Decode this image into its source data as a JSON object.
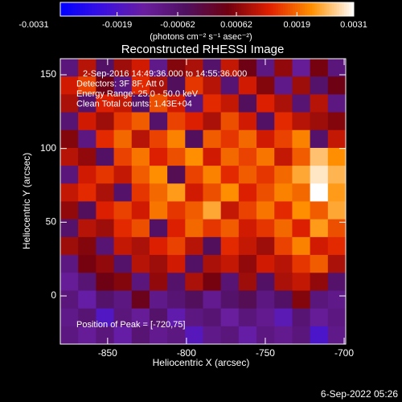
{
  "chart_data": {
    "type": "heatmap",
    "title": "Reconstructed RHESSI Image",
    "annotations": [
      "2-Sep-2016 14:49:36.000 to 14:55:36.000",
      "Detectors: 3F 8F, Att 0",
      "Energy Range: 25.0 - 50.0 keV",
      "Clean     Total counts: 1.43E+04"
    ],
    "peak_label": "Position of Peak = [-720,75]",
    "xlabel": "Heliocentric X (arcsec)",
    "ylabel": "Heliocentric Y (arcsec)",
    "colorbar_label": "(photons cm⁻² s⁻¹ asec⁻²)",
    "timestamp": "6-Sep-2022 05:26",
    "xlim": [
      -880,
      -699
    ],
    "xticks": [
      -850,
      -800,
      -750,
      -700
    ],
    "ylim": [
      -32.7,
      160.9
    ],
    "yticks": [
      0,
      50,
      100,
      150
    ],
    "colorbar_lim": [
      -0.0031,
      0.0031
    ],
    "colorbar_ticks": [
      -0.0031,
      -0.0019,
      -0.00062,
      0.00062,
      0.0019,
      0.0031
    ],
    "colorscale": [
      "#0000ff",
      "#3a10e0",
      "#6a1ea0",
      "#501060",
      "#700010",
      "#e02000",
      "#ff9000",
      "#ffffff"
    ],
    "z": [
      [
        -0.0008,
        0.001,
        -0.0005,
        0.0008,
        0.0012,
        -0.001,
        0.0006,
        0.0009,
        -0.0006,
        0.0011,
        0.0004,
        -0.0009,
        0.0007,
        -0.0012,
        0.0005,
        -0.0008
      ],
      [
        0.0012,
        0.0016,
        0.0004,
        -0.0008,
        0.0014,
        0.0009,
        -0.0004,
        0.0015,
        0.001,
        -0.0007,
        0.0012,
        0.0006,
        -0.001,
        0.0008,
        -0.0006,
        0.0004
      ],
      [
        0.0009,
        -0.0006,
        0.0013,
        0.0011,
        -0.0005,
        0.0017,
        0.0012,
        -0.0008,
        0.0014,
        0.0011,
        -0.0004,
        0.0013,
        0.0009,
        -0.0007,
        0.001,
        -0.0009
      ],
      [
        -0.0007,
        0.0012,
        0.0008,
        0.0015,
        0.0018,
        -0.0006,
        0.0016,
        0.0013,
        0.0009,
        0.0017,
        0.0012,
        -0.0005,
        0.0014,
        0.001,
        0.0008,
        0.0006
      ],
      [
        0.0006,
        -0.0009,
        0.0014,
        0.0019,
        0.001,
        0.0016,
        0.0021,
        -0.0004,
        0.0018,
        0.0015,
        0.0019,
        0.0012,
        0.0016,
        0.0021,
        -0.0006,
        0.0011
      ],
      [
        0.001,
        0.0007,
        -0.0005,
        0.0016,
        0.002,
        0.0013,
        0.0017,
        0.0022,
        0.0012,
        0.0019,
        0.0016,
        0.002,
        0.0011,
        0.0018,
        0.0026,
        0.0022
      ],
      [
        -0.0008,
        0.0012,
        0.0015,
        0.0011,
        0.0018,
        0.0022,
        -0.0003,
        0.0016,
        0.0021,
        0.0014,
        0.0018,
        0.0015,
        0.0019,
        0.0024,
        0.0029,
        0.0025
      ],
      [
        0.0011,
        0.0014,
        0.0009,
        -0.0006,
        0.0015,
        0.0019,
        0.0023,
        0.0012,
        0.0017,
        0.0022,
        0.0013,
        0.0017,
        0.0021,
        0.0019,
        0.0031,
        0.0023
      ],
      [
        0.0007,
        -0.0004,
        0.0013,
        0.0016,
        0.0012,
        0.002,
        0.0015,
        0.0018,
        0.0024,
        0.0011,
        0.0016,
        0.002,
        0.0014,
        0.0022,
        0.0018,
        0.0024
      ],
      [
        -0.0006,
        0.001,
        0.0008,
        0.0014,
        0.0017,
        -0.0005,
        0.0013,
        0.0019,
        0.0015,
        0.0018,
        0.0012,
        0.0015,
        0.0019,
        0.0013,
        0.0023,
        0.0017
      ],
      [
        0.0008,
        0.0006,
        -0.0007,
        0.0011,
        0.0009,
        0.0013,
        0.0016,
        0.001,
        -0.0004,
        0.0014,
        0.0011,
        0.0008,
        0.0016,
        0.0021,
        0.0012,
        0.0014
      ],
      [
        -0.0009,
        0.0005,
        0.0007,
        -0.0006,
        0.001,
        0.0008,
        0.0012,
        -0.0005,
        0.0009,
        0.0011,
        0.0007,
        0.0012,
        0.001,
        0.0015,
        0.0018,
        0.0009
      ],
      [
        -0.0012,
        -0.0007,
        0.0004,
        0.0006,
        -0.0008,
        0.0007,
        -0.0006,
        0.0009,
        0.0005,
        -0.0007,
        0.0008,
        -0.0005,
        0.0009,
        0.0011,
        0.0007,
        -0.0006
      ],
      [
        -0.0008,
        -0.0014,
        -0.0006,
        -0.0009,
        0.0003,
        -0.001,
        -0.0007,
        -0.0004,
        -0.0011,
        -0.0006,
        -0.0003,
        -0.0009,
        -0.0005,
        0.0006,
        -0.0008,
        -0.001
      ],
      [
        -0.001,
        -0.0007,
        -0.0018,
        -0.0008,
        -0.0012,
        -0.0006,
        -0.0015,
        -0.0009,
        -0.0007,
        -0.0013,
        -0.0008,
        -0.0011,
        -0.0016,
        -0.0007,
        -0.0012,
        -0.0009
      ],
      [
        -0.0009,
        -0.0012,
        -0.0008,
        -0.0014,
        -0.0007,
        -0.0011,
        -0.0009,
        -0.0017,
        -0.001,
        -0.0008,
        -0.0014,
        -0.0009,
        -0.0011,
        -0.0008,
        -0.0019,
        -0.001
      ]
    ]
  }
}
